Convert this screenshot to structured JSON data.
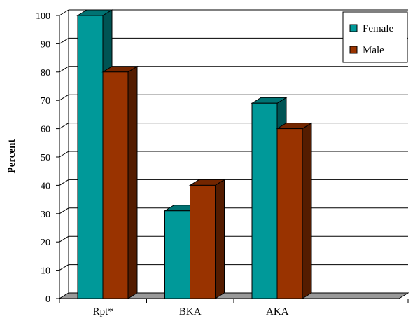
{
  "chart_data": {
    "type": "bar",
    "title": "",
    "xlabel": "",
    "ylabel": "Percent",
    "ylim": [
      0,
      100
    ],
    "yticks": [
      0,
      10,
      20,
      30,
      40,
      50,
      60,
      70,
      80,
      90,
      100
    ],
    "categories": [
      "Rpt*",
      "BKA",
      "AKA",
      ""
    ],
    "series": [
      {
        "name": "Female",
        "values": [
          100,
          31,
          69,
          null
        ],
        "color": "#009999"
      },
      {
        "name": "Male",
        "values": [
          80,
          40,
          60,
          null
        ],
        "color": "#993300"
      }
    ],
    "grid": true,
    "legend_position": "top-right",
    "style": "3d"
  }
}
